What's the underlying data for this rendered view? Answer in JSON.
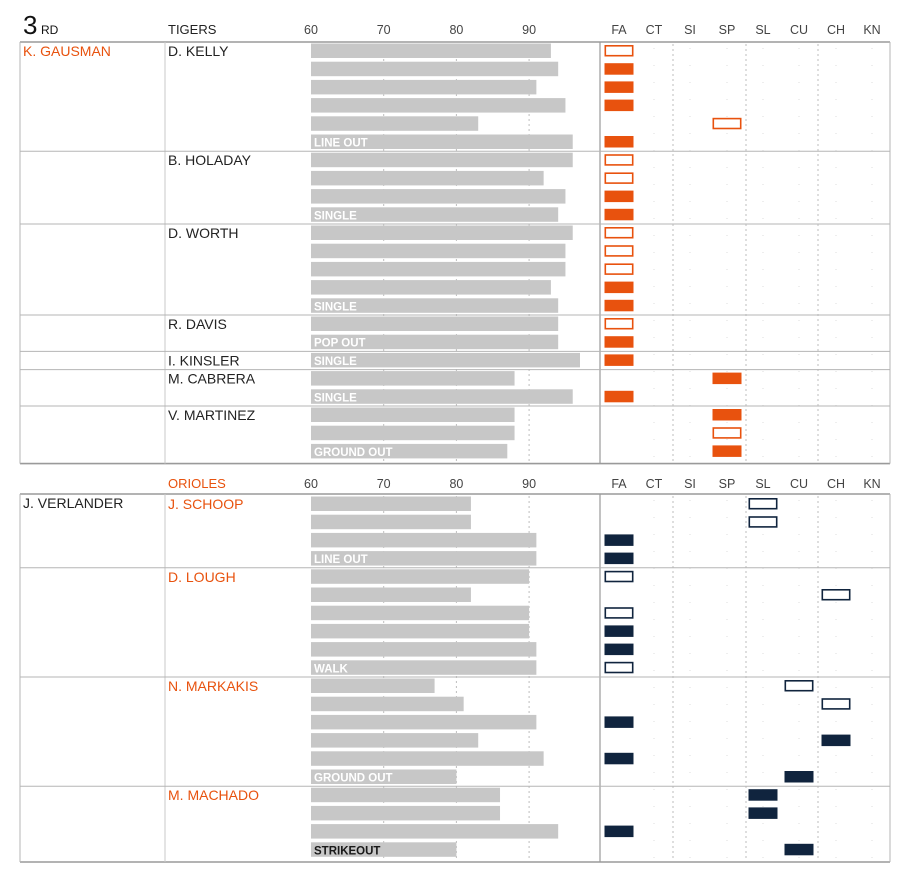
{
  "inning": {
    "number": "3",
    "suffix": "RD"
  },
  "colors": {
    "orange": "#e8520e",
    "navy": "#10243e",
    "bar": "#c7c7c7",
    "grid": "#bdbdbd",
    "text": "#222222"
  },
  "pitch_types": [
    "FA",
    "CT",
    "SI",
    "SP",
    "SL",
    "CU",
    "CH",
    "KN"
  ],
  "chart_data": [
    {
      "type": "bar",
      "batting_team": "TIGERS",
      "pitcher": "K. GAUSMAN",
      "xlim": [
        60,
        100
      ],
      "ticks": [
        "60",
        "70",
        "80",
        "90"
      ],
      "at_bats": [
        {
          "batter": "D. KELLY",
          "outcome": "LINE OUT",
          "pitches": [
            {
              "speed": 93,
              "type": "FA",
              "outline": true
            },
            {
              "speed": 94,
              "type": "FA",
              "outline": false
            },
            {
              "speed": 91,
              "type": "FA",
              "outline": false
            },
            {
              "speed": 95,
              "type": "FA",
              "outline": false
            },
            {
              "speed": 83,
              "type": "SP",
              "outline": true
            },
            {
              "speed": 96,
              "type": "FA",
              "outline": false
            }
          ]
        },
        {
          "batter": "B. HOLADAY",
          "outcome": "SINGLE",
          "pitches": [
            {
              "speed": 96,
              "type": "FA",
              "outline": true
            },
            {
              "speed": 92,
              "type": "FA",
              "outline": true
            },
            {
              "speed": 95,
              "type": "FA",
              "outline": false
            },
            {
              "speed": 94,
              "type": "FA",
              "outline": false
            }
          ]
        },
        {
          "batter": "D. WORTH",
          "outcome": "SINGLE",
          "pitches": [
            {
              "speed": 96,
              "type": "FA",
              "outline": true
            },
            {
              "speed": 95,
              "type": "FA",
              "outline": true
            },
            {
              "speed": 95,
              "type": "FA",
              "outline": true
            },
            {
              "speed": 93,
              "type": "FA",
              "outline": false
            },
            {
              "speed": 94,
              "type": "FA",
              "outline": false
            }
          ]
        },
        {
          "batter": "R. DAVIS",
          "outcome": "POP OUT",
          "pitches": [
            {
              "speed": 94,
              "type": "FA",
              "outline": true
            },
            {
              "speed": 94,
              "type": "FA",
              "outline": false
            }
          ]
        },
        {
          "batter": "I. KINSLER",
          "outcome": "SINGLE",
          "pitches": [
            {
              "speed": 97,
              "type": "FA",
              "outline": false
            }
          ]
        },
        {
          "batter": "M. CABRERA",
          "outcome": "SINGLE",
          "pitches": [
            {
              "speed": 88,
              "type": "SP",
              "outline": false
            },
            {
              "speed": 96,
              "type": "FA",
              "outline": false
            }
          ]
        },
        {
          "batter": "V. MARTINEZ",
          "outcome": "GROUND OUT",
          "pitches": [
            {
              "speed": 88,
              "type": "SP",
              "outline": false
            },
            {
              "speed": 88,
              "type": "SP",
              "outline": true
            },
            {
              "speed": 87,
              "type": "SP",
              "outline": false
            }
          ]
        }
      ]
    },
    {
      "type": "bar",
      "batting_team": "ORIOLES",
      "pitcher": "J. VERLANDER",
      "xlim": [
        60,
        100
      ],
      "ticks": [
        "60",
        "70",
        "80",
        "90"
      ],
      "at_bats": [
        {
          "batter": "J. SCHOOP",
          "outcome": "LINE OUT",
          "pitches": [
            {
              "speed": 82,
              "type": "SL",
              "outline": true
            },
            {
              "speed": 82,
              "type": "SL",
              "outline": true
            },
            {
              "speed": 91,
              "type": "FA",
              "outline": false
            },
            {
              "speed": 91,
              "type": "FA",
              "outline": false
            }
          ]
        },
        {
          "batter": "D. LOUGH",
          "outcome": "WALK",
          "pitches": [
            {
              "speed": 90,
              "type": "FA",
              "outline": true
            },
            {
              "speed": 82,
              "type": "CH",
              "outline": true
            },
            {
              "speed": 90,
              "type": "FA",
              "outline": true
            },
            {
              "speed": 90,
              "type": "FA",
              "outline": false
            },
            {
              "speed": 91,
              "type": "FA",
              "outline": false
            },
            {
              "speed": 91,
              "type": "FA",
              "outline": true
            }
          ]
        },
        {
          "batter": "N. MARKAKIS",
          "outcome": "GROUND OUT",
          "pitches": [
            {
              "speed": 77,
              "type": "CU",
              "outline": true
            },
            {
              "speed": 81,
              "type": "CH",
              "outline": true
            },
            {
              "speed": 91,
              "type": "FA",
              "outline": false
            },
            {
              "speed": 83,
              "type": "CH",
              "outline": false
            },
            {
              "speed": 92,
              "type": "FA",
              "outline": false
            },
            {
              "speed": 80,
              "type": "CU",
              "outline": false
            }
          ]
        },
        {
          "batter": "M. MACHADO",
          "outcome": "STRIKEOUT",
          "pitches": [
            {
              "speed": 86,
              "type": "SL",
              "outline": false
            },
            {
              "speed": 86,
              "type": "SL",
              "outline": false
            },
            {
              "speed": 94,
              "type": "FA",
              "outline": false
            },
            {
              "speed": 80,
              "type": "CU",
              "outline": false
            }
          ]
        }
      ]
    }
  ]
}
